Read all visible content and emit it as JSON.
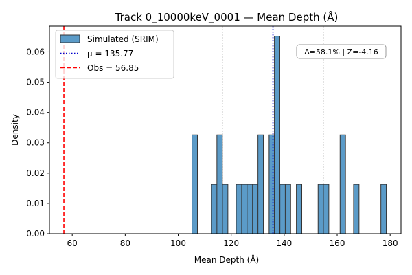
{
  "chart_data": {
    "type": "bar",
    "title": "Track 0_10000keV_0001 — Mean Depth (Å)",
    "xlabel": "Mean Depth (Å)",
    "ylabel": "Density",
    "xlim": [
      51.4,
      184.1
    ],
    "ylim": [
      0,
      0.0685
    ],
    "x_ticks": [
      60,
      80,
      100,
      120,
      140,
      160,
      180
    ],
    "y_ticks": [
      0.0,
      0.01,
      0.02,
      0.03,
      0.04,
      0.05,
      0.06
    ],
    "y_tick_labels": [
      "0.00",
      "0.01",
      "0.02",
      "0.03",
      "0.04",
      "0.05",
      "0.06"
    ],
    "bin_width": 2.05,
    "bin_left_edges": [
      105.2,
      112.6,
      114.6,
      116.7,
      121.9,
      124.0,
      126.0,
      128.1,
      130.1,
      134.3,
      136.3,
      138.4,
      140.4,
      144.6,
      152.8,
      154.8,
      161.1,
      166.2,
      176.5
    ],
    "densities": [
      0.0326,
      0.0163,
      0.0326,
      0.0163,
      0.0163,
      0.0163,
      0.0163,
      0.0163,
      0.0326,
      0.0326,
      0.0652,
      0.0163,
      0.0163,
      0.0163,
      0.0163,
      0.0163,
      0.0326,
      0.0163,
      0.0163
    ],
    "bar_color": "#5b9bc8",
    "bar_edge_color": "#333333",
    "grid_vlines": [
      116.7,
      154.8
    ],
    "mean": 135.77,
    "observed": 56.85,
    "mean_color": "#0000cc",
    "obs_color": "#ff0000",
    "legend": {
      "placement": "upper-left",
      "entries": [
        "Simulated (SRIM)",
        "μ = 135.77",
        "Obs = 56.85"
      ]
    },
    "annotation": "Δ=58.1% | Z=-4.16"
  }
}
